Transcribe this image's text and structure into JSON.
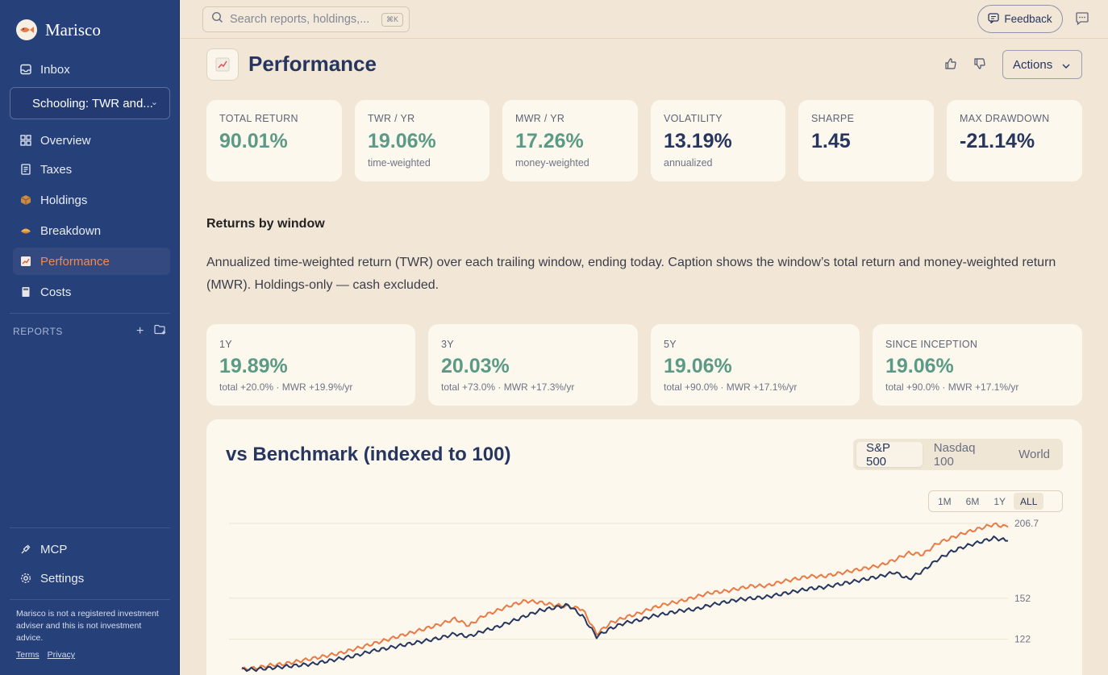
{
  "app": {
    "name": "Marisco"
  },
  "sidebar": {
    "inbox": "Inbox",
    "report_selector": "Schooling: TWR and...",
    "nav": [
      {
        "label": "Overview",
        "icon": "grid-icon"
      },
      {
        "label": "Taxes",
        "icon": "receipt-icon"
      },
      {
        "label": "Holdings",
        "icon": "box-icon"
      },
      {
        "label": "Breakdown",
        "icon": "pie-icon"
      },
      {
        "label": "Performance",
        "icon": "chart-icon",
        "active": true
      },
      {
        "label": "Costs",
        "icon": "calculator-icon"
      }
    ],
    "reports_heading": "REPORTS",
    "bottom": [
      {
        "label": "MCP",
        "icon": "plug-icon"
      },
      {
        "label": "Settings",
        "icon": "gear-icon"
      }
    ],
    "disclaimer": "Marisco is not a registered investment adviser and this is not investment advice.",
    "terms": "Terms",
    "privacy": "Privacy"
  },
  "topbar": {
    "search_placeholder": "Search reports, holdings,...",
    "search_shortcut": "⌘K",
    "feedback": "Feedback"
  },
  "page": {
    "title": "Performance",
    "actions": "Actions"
  },
  "metrics": [
    {
      "label": "TOTAL RETURN",
      "value": "90.01%",
      "sub": "",
      "tone": "green"
    },
    {
      "label": "TWR / YR",
      "value": "19.06%",
      "sub": "time-weighted",
      "tone": "green"
    },
    {
      "label": "MWR / YR",
      "value": "17.26%",
      "sub": "money-weighted",
      "tone": "green"
    },
    {
      "label": "VOLATILITY",
      "value": "13.19%",
      "sub": "annualized",
      "tone": "navy"
    },
    {
      "label": "SHARPE",
      "value": "1.45",
      "sub": "",
      "tone": "navy"
    },
    {
      "label": "MAX DRAWDOWN",
      "value": "-21.14%",
      "sub": "",
      "tone": "navy"
    }
  ],
  "returns_section": {
    "title": "Returns by window",
    "description": "Annualized time-weighted return (TWR) over each trailing window, ending today. Caption shows the window’s total return and money-weighted return (MWR). Holdings-only — cash excluded."
  },
  "windows": [
    {
      "label": "1Y",
      "value": "19.89%",
      "sub": "total +20.0% · MWR +19.9%/yr"
    },
    {
      "label": "3Y",
      "value": "20.03%",
      "sub": "total +73.0% · MWR +17.3%/yr"
    },
    {
      "label": "5Y",
      "value": "19.06%",
      "sub": "total +90.0% · MWR +17.1%/yr"
    },
    {
      "label": "SINCE INCEPTION",
      "value": "19.06%",
      "sub": "total +90.0% · MWR +17.1%/yr"
    }
  ],
  "benchmark": {
    "title": "vs Benchmark (indexed to 100)",
    "options": [
      "S&P 500",
      "Nasdaq 100",
      "World"
    ],
    "selected": "S&P 500",
    "ranges": [
      "1M",
      "6M",
      "1Y",
      "ALL"
    ],
    "selected_range": "ALL"
  },
  "colors": {
    "sidebar": "#26407a",
    "accent": "#f08a55",
    "positive": "#5a9a86",
    "navy": "#26365f",
    "portfolio": "#e97a45",
    "benchmark": "#26365f"
  },
  "chart_data": {
    "type": "line",
    "title": "vs Benchmark (indexed to 100)",
    "y_ticks": [
      206.7,
      152,
      122
    ],
    "ylim": [
      100,
      212
    ],
    "grid": true,
    "series": [
      {
        "values": [
          100,
          101,
          103,
          104,
          106,
          108,
          110,
          112,
          115,
          118,
          121,
          124,
          127,
          130,
          133,
          137,
          132,
          139,
          143,
          147,
          150,
          149,
          147,
          146,
          144,
          126,
          134,
          138,
          141,
          145,
          148,
          150,
          153,
          156,
          157,
          159,
          161,
          161,
          164,
          166,
          168,
          168,
          170,
          172,
          174,
          176,
          180,
          185,
          184,
          192,
          196,
          200,
          203,
          206,
          204
        ]
      },
      {
        "values": [
          100,
          100,
          101,
          102,
          103,
          104,
          106,
          108,
          110,
          113,
          115,
          117,
          119,
          121,
          123,
          126,
          124,
          128,
          131,
          135,
          139,
          143,
          145,
          147,
          139,
          124,
          130,
          134,
          136,
          139,
          141,
          143,
          144,
          147,
          149,
          151,
          152,
          153,
          155,
          157,
          159,
          160,
          162,
          164,
          166,
          168,
          171,
          166,
          172,
          180,
          186,
          190,
          193,
          196,
          194
        ]
      }
    ]
  }
}
